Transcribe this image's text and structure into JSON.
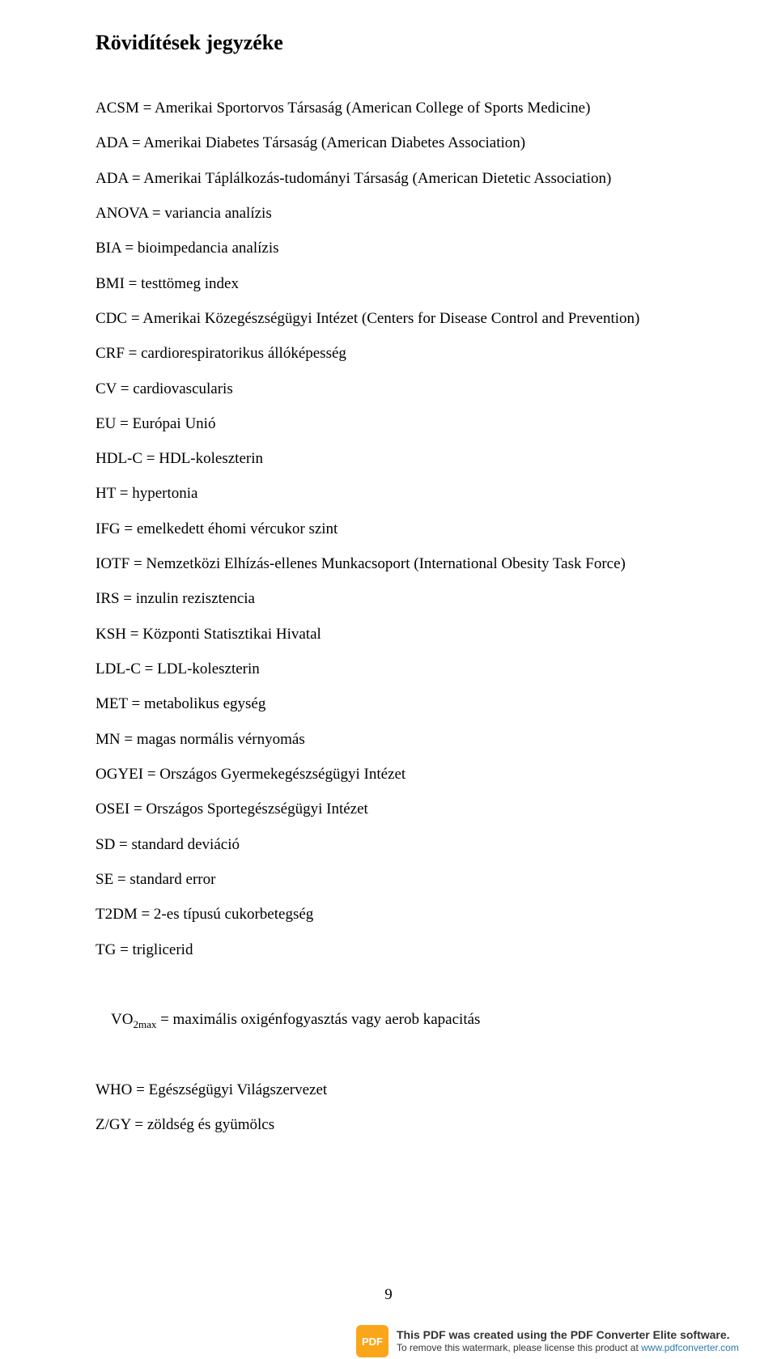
{
  "title": "Rövidítések jegyzéke",
  "abbreviations": [
    "ACSM = Amerikai Sportorvos Társaság (American College of Sports Medicine)",
    "ADA = Amerikai Diabetes Társaság (American Diabetes Association)",
    "ADA = Amerikai Táplálkozás-tudományi Társaság (American Dietetic Association)",
    "ANOVA = variancia analízis",
    "BIA = bioimpedancia analízis",
    "BMI = testtömeg index",
    "CDC = Amerikai Közegészségügyi Intézet (Centers for Disease Control and Prevention)",
    "CRF = cardiorespiratorikus állóképesség",
    "CV = cardiovascularis",
    "EU = Európai Unió",
    "HDL-C = HDL-koleszterin",
    "HT = hypertonia",
    "IFG = emelkedett éhomi vércukor szint",
    "IOTF = Nemzetközi Elhízás-ellenes Munkacsoport (International Obesity Task Force)",
    "IRS = inzulin rezisztencia",
    "KSH = Központi Statisztikai Hivatal",
    "LDL-C = LDL-koleszterin",
    "MET = metabolikus egység",
    "MN = magas normális vérnyomás",
    "OGYEI = Országos Gyermekegészségügyi Intézet",
    "OSEI = Országos Sportegészségügyi Intézet",
    "SD = standard deviáció",
    "SE = standard error",
    "T2DM = 2-es típusú cukorbetegség",
    "TG = triglicerid"
  ],
  "vo2max": {
    "prefix": "VO",
    "sub": "2max",
    "suffix": " = maximális oxigénfogyasztás vagy aerob kapacitás"
  },
  "trailing": [
    "WHO = Egészségügyi Világszervezet",
    "Z/GY = zöldség és gyümölcs"
  ],
  "page_number": "9",
  "watermark": {
    "icon_text": "PDF",
    "line1": "This PDF was created using the PDF Converter Elite software.",
    "line2_prefix": "To remove this watermark, please license this product at ",
    "line2_link": "www.pdfconverter.com"
  },
  "colors": {
    "text": "#000000",
    "background": "#ffffff",
    "wm_orange": "#faa61a",
    "wm_text": "#333333",
    "wm_link": "#2a7ab0"
  },
  "fonts": {
    "body_family": "Times New Roman",
    "body_size_pt": 14,
    "title_size_pt": 20,
    "watermark_family": "Arial"
  }
}
